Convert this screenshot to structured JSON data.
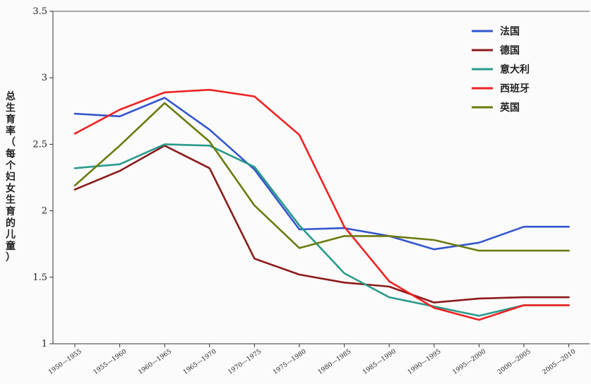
{
  "chart_data": {
    "type": "line",
    "title": "",
    "xlabel": "",
    "ylabel": "总生育率（每个妇女生育的儿童）",
    "ylim": [
      1,
      3.5
    ],
    "yticks": [
      "1",
      "1.5",
      "2",
      "2.5",
      "3",
      "3.5"
    ],
    "grid": false,
    "legend_position": "top-right",
    "categories": [
      "1950—1955",
      "1955—1960",
      "1960—1965",
      "1965—1970",
      "1970—1975",
      "1975—1980",
      "1980—1985",
      "1985—1990",
      "1990—1995",
      "1995—2000",
      "2000—2005",
      "2005—2010"
    ],
    "series": [
      {
        "name": "法国",
        "color": "#3355cc",
        "values": [
          2.73,
          2.71,
          2.85,
          2.61,
          2.31,
          1.86,
          1.87,
          1.81,
          1.71,
          1.76,
          1.88,
          1.88
        ]
      },
      {
        "name": "德国",
        "color": "#8b1a1a",
        "values": [
          2.16,
          2.3,
          2.49,
          2.32,
          1.64,
          1.52,
          1.46,
          1.43,
          1.31,
          1.34,
          1.35,
          1.35
        ]
      },
      {
        "name": "意大利",
        "color": "#2a9a8a",
        "values": [
          2.32,
          2.35,
          2.5,
          2.49,
          2.33,
          1.89,
          1.53,
          1.35,
          1.28,
          1.21,
          1.29,
          1.29
        ]
      },
      {
        "name": "西班牙",
        "color": "#ee2222",
        "values": [
          2.58,
          2.76,
          2.89,
          2.91,
          2.86,
          2.57,
          1.88,
          1.47,
          1.27,
          1.18,
          1.29,
          1.29
        ]
      },
      {
        "name": "英国",
        "color": "#6b7a10",
        "values": [
          2.19,
          2.49,
          2.81,
          2.52,
          2.04,
          1.72,
          1.81,
          1.81,
          1.78,
          1.7,
          1.7,
          1.7
        ]
      }
    ]
  }
}
